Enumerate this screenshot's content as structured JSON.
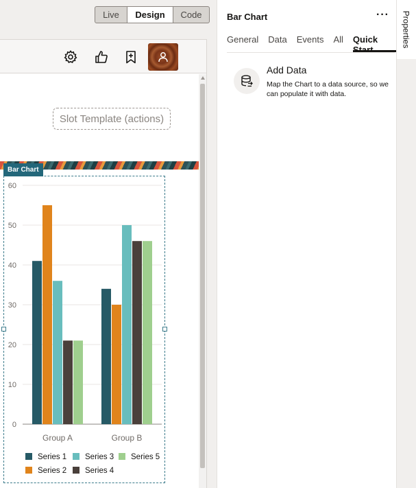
{
  "mode_toggle": {
    "live": "Live",
    "design": "Design",
    "code": "Code",
    "selected": "Design"
  },
  "page_header": {
    "icons": [
      "gear-icon",
      "thumbs-up-icon",
      "bookmark-add-icon"
    ],
    "avatar": "user-avatar"
  },
  "slot_template": "Slot Template (actions)",
  "chart_label": "Bar Chart",
  "properties": {
    "title": "Bar Chart",
    "more": "···",
    "tabs": [
      "General",
      "Data",
      "Events",
      "All",
      "Quick Start"
    ],
    "active_tab": "Quick Start",
    "add_data": {
      "title": "Add Data",
      "description": "Map the Chart to a data source, so we can populate it with data."
    },
    "side_tab": "Properties"
  },
  "chart_data": {
    "type": "bar",
    "categories": [
      "Group A",
      "Group B"
    ],
    "ylim": [
      0,
      60
    ],
    "yticks": [
      0,
      10,
      20,
      30,
      40,
      50,
      60
    ],
    "legend_position": "bottom",
    "series": [
      {
        "name": "Series 1",
        "color": "#265a66",
        "values": [
          41,
          34
        ]
      },
      {
        "name": "Series 2",
        "color": "#e0841c",
        "values": [
          55,
          30
        ]
      },
      {
        "name": "Series 3",
        "color": "#68bdbd",
        "values": [
          36,
          50
        ]
      },
      {
        "name": "Series 4",
        "color": "#4a403b",
        "values": [
          21,
          46
        ]
      },
      {
        "name": "Series 5",
        "color": "#9fcf8e",
        "values": [
          21,
          46
        ]
      }
    ]
  }
}
